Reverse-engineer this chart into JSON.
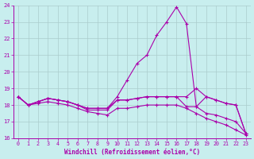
{
  "xlabel": "Windchill (Refroidissement éolien,°C)",
  "xlim_min": -0.5,
  "xlim_max": 23.5,
  "ylim_min": 16,
  "ylim_max": 24,
  "yticks": [
    16,
    17,
    18,
    19,
    20,
    21,
    22,
    23,
    24
  ],
  "xticks": [
    0,
    1,
    2,
    3,
    4,
    5,
    6,
    7,
    8,
    9,
    10,
    11,
    12,
    13,
    14,
    15,
    16,
    17,
    18,
    19,
    20,
    21,
    22,
    23
  ],
  "background_color": "#c8eeee",
  "grid_color": "#aacccc",
  "line_color": "#aa00aa",
  "series": {
    "line1": [
      18.5,
      18.0,
      18.2,
      18.4,
      18.3,
      18.2,
      18.0,
      17.8,
      17.8,
      17.8,
      18.3,
      18.3,
      18.4,
      18.5,
      18.5,
      18.5,
      18.5,
      18.5,
      19.0,
      18.5,
      18.3,
      18.1,
      18.0,
      16.3
    ],
    "line2": [
      18.5,
      18.0,
      18.2,
      18.4,
      18.3,
      18.2,
      18.0,
      17.8,
      17.8,
      17.8,
      18.5,
      19.5,
      20.5,
      21.0,
      22.2,
      23.0,
      23.9,
      22.9,
      17.9,
      18.5,
      18.3,
      18.1,
      18.0,
      16.3
    ],
    "line3": [
      18.5,
      18.0,
      18.2,
      18.4,
      18.3,
      18.2,
      18.0,
      17.7,
      17.7,
      17.7,
      18.3,
      18.3,
      18.4,
      18.5,
      18.5,
      18.5,
      18.5,
      17.9,
      17.9,
      17.5,
      17.4,
      17.2,
      17.0,
      16.3
    ],
    "line4": [
      18.5,
      18.0,
      18.1,
      18.2,
      18.1,
      18.0,
      17.8,
      17.6,
      17.5,
      17.4,
      17.8,
      17.8,
      17.9,
      18.0,
      18.0,
      18.0,
      18.0,
      17.8,
      17.5,
      17.2,
      17.0,
      16.8,
      16.5,
      16.2
    ]
  }
}
